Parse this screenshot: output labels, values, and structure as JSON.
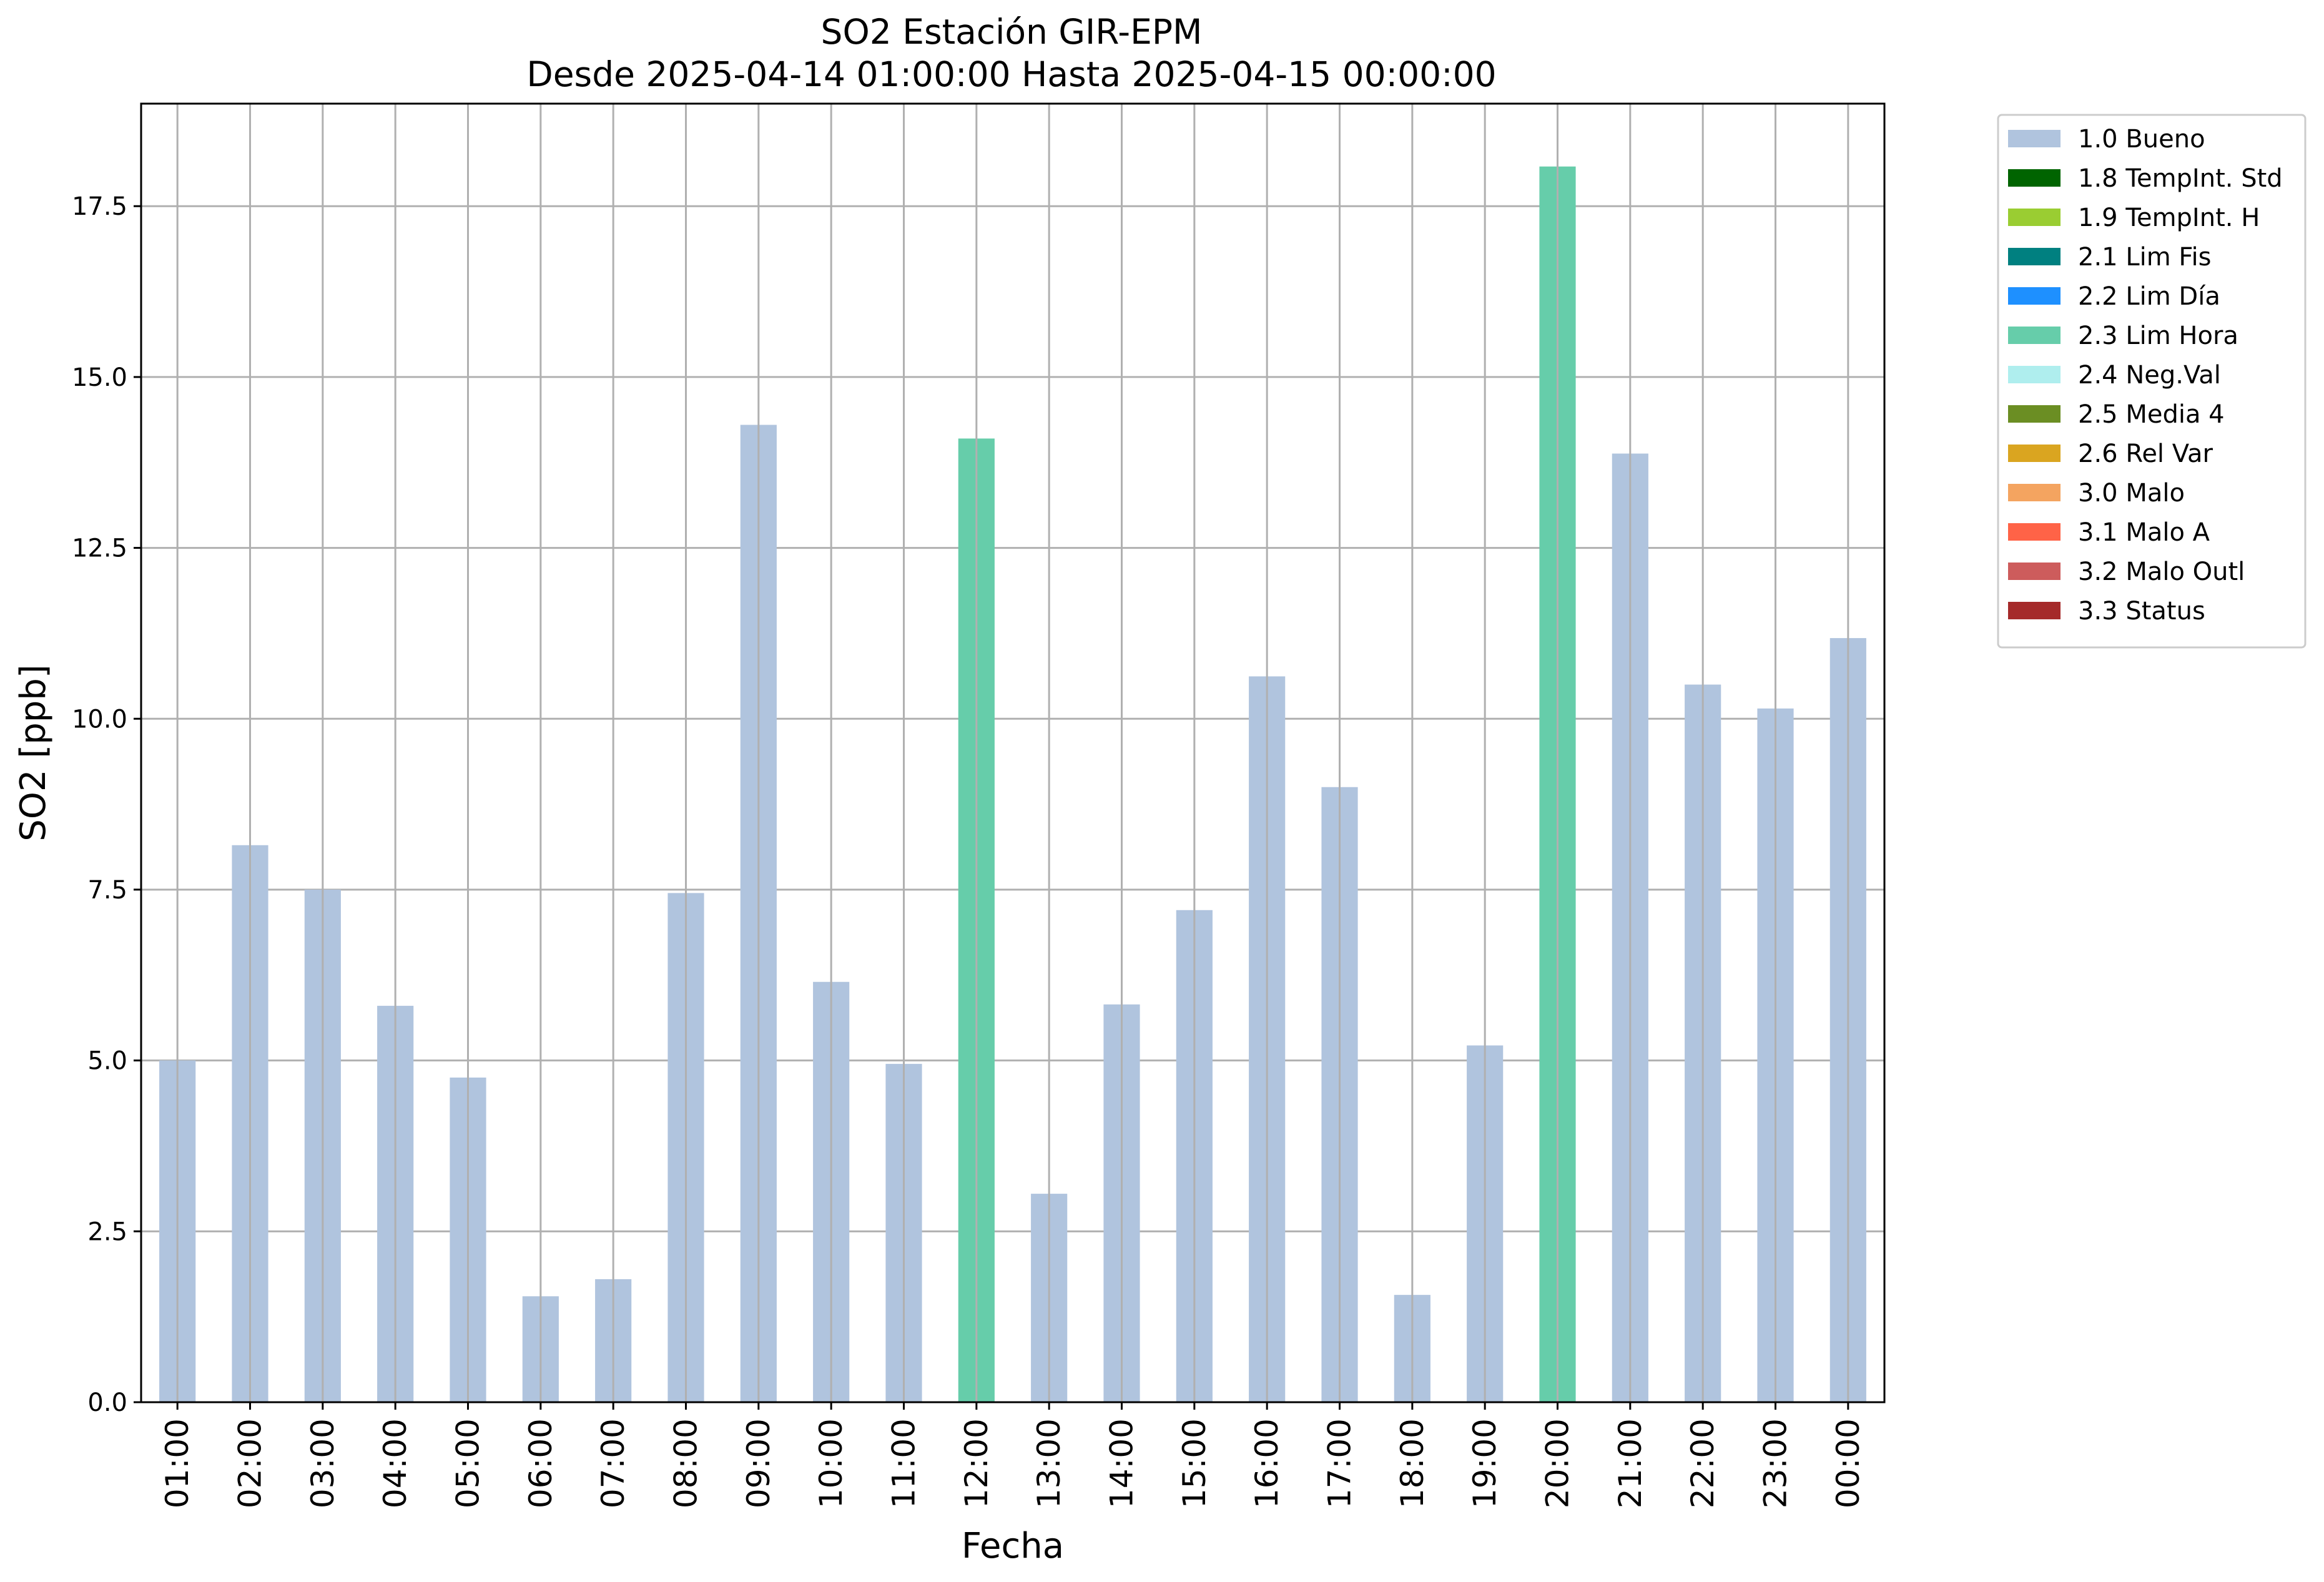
{
  "chart_data": {
    "type": "bar",
    "title": "SO2 Estación GIR-EPM",
    "subtitle": "Desde 2025-04-14 01:00:00 Hasta 2025-04-15 00:00:00",
    "xlabel": "Fecha",
    "ylabel": "SO2 [ppb]",
    "ylim": [
      0,
      19
    ],
    "yticks": [
      "0.0",
      "2.5",
      "5.0",
      "7.5",
      "10.0",
      "12.5",
      "15.0",
      "17.5"
    ],
    "ytick_values": [
      0,
      2.5,
      5,
      7.5,
      10,
      12.5,
      15,
      17.5
    ],
    "grid": true,
    "legend_position": "outside-top-right",
    "categories": [
      "01:00",
      "02:00",
      "03:00",
      "04:00",
      "05:00",
      "06:00",
      "07:00",
      "08:00",
      "09:00",
      "10:00",
      "11:00",
      "12:00",
      "13:00",
      "14:00",
      "15:00",
      "16:00",
      "17:00",
      "18:00",
      "19:00",
      "20:00",
      "21:00",
      "22:00",
      "23:00",
      "00:00"
    ],
    "values": [
      5.0,
      8.15,
      7.5,
      5.8,
      4.75,
      1.55,
      1.8,
      7.45,
      14.3,
      6.15,
      4.95,
      14.1,
      3.05,
      5.82,
      7.2,
      10.62,
      9.0,
      1.57,
      5.22,
      18.08,
      13.88,
      10.5,
      10.15,
      11.18
    ],
    "flags": [
      "1.0 Bueno",
      "1.0 Bueno",
      "1.0 Bueno",
      "1.0 Bueno",
      "1.0 Bueno",
      "1.0 Bueno",
      "1.0 Bueno",
      "1.0 Bueno",
      "1.0 Bueno",
      "1.0 Bueno",
      "1.0 Bueno",
      "2.3 Lim Hora",
      "1.0 Bueno",
      "1.0 Bueno",
      "1.0 Bueno",
      "1.0 Bueno",
      "1.0 Bueno",
      "1.0 Bueno",
      "1.0 Bueno",
      "2.3 Lim Hora",
      "1.0 Bueno",
      "1.0 Bueno",
      "1.0 Bueno",
      "1.0 Bueno"
    ],
    "legend": [
      {
        "label": "1.0 Bueno",
        "color": "#b0c4de"
      },
      {
        "label": "1.8 TempInt. Std",
        "color": "#006400"
      },
      {
        "label": "1.9 TempInt. H",
        "color": "#9acd32"
      },
      {
        "label": "2.1 Lim Fis",
        "color": "#008080"
      },
      {
        "label": "2.2 Lim Día",
        "color": "#1e90ff"
      },
      {
        "label": "2.3 Lim Hora",
        "color": "#66cdaa"
      },
      {
        "label": "2.4 Neg.Val",
        "color": "#afeeee"
      },
      {
        "label": "2.5 Media 4",
        "color": "#6b8e23"
      },
      {
        "label": "2.6 Rel Var",
        "color": "#daa520"
      },
      {
        "label": "3.0 Malo",
        "color": "#f4a460"
      },
      {
        "label": "3.1 Malo A",
        "color": "#ff6347"
      },
      {
        "label": "3.2 Malo Outl",
        "color": "#cd5c5c"
      },
      {
        "label": "3.3 Status",
        "color": "#a52a2a"
      }
    ]
  }
}
